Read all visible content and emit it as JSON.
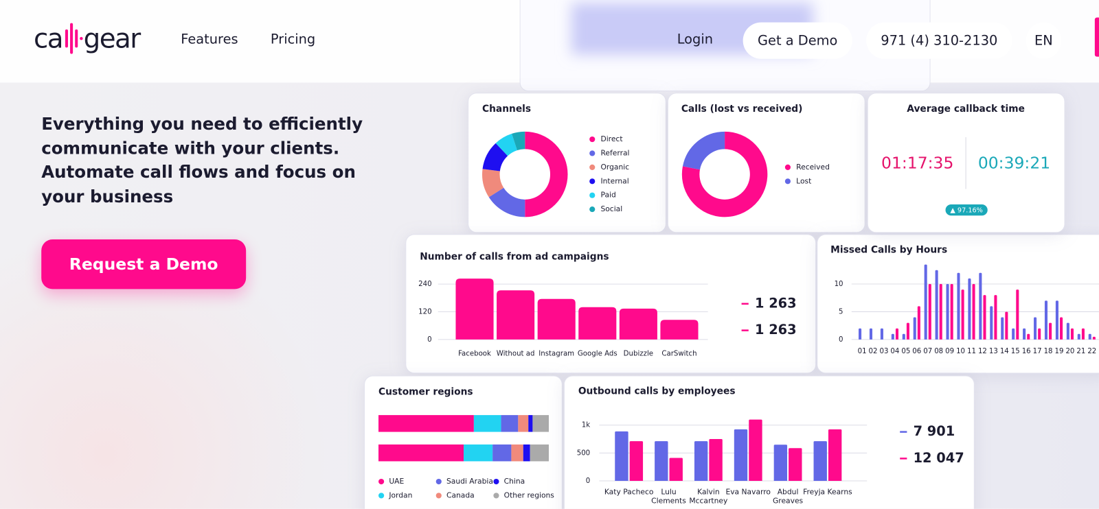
{
  "nav": {
    "logo": {
      "left": "ca",
      "right": "gear"
    },
    "links": [
      "Features",
      "Pricing"
    ],
    "login": "Login",
    "demo": "Get a Demo",
    "phone": "971 (4) 310-2130",
    "lang": "EN"
  },
  "hero": {
    "text": "Everything you need to efficiently communicate with your clients. Automate call flows and focus on your business",
    "button": "Request a Demo"
  },
  "callback": {
    "title": "Average callback time",
    "times": [
      "01:17:35",
      "00:39:21"
    ],
    "badge": "▲ 97.16%"
  },
  "chart_data": [
    {
      "type": "pie",
      "donut": true,
      "title": "Channels",
      "categories": [
        "Direct",
        "Referral",
        "Organic",
        "Internal",
        "Paid",
        "Social"
      ],
      "values": [
        50,
        16,
        11,
        11,
        7,
        5
      ],
      "colors": [
        "#ff0a8c",
        "#6268e6",
        "#f08a7c",
        "#1e0ff0",
        "#22d3f2",
        "#1aa8b8"
      ]
    },
    {
      "type": "pie",
      "donut": true,
      "title": "Calls (lost vs received)",
      "categories": [
        "Received",
        "Lost"
      ],
      "values": [
        78,
        22
      ],
      "colors": [
        "#ff0a8c",
        "#6268e6"
      ]
    },
    {
      "type": "bar",
      "title": "Number of calls from ad campaigns",
      "categories": [
        "Facebook",
        "Without ad",
        "Instagram",
        "Google Ads",
        "Dubizzle",
        "CarSwitch"
      ],
      "values": [
        264,
        213,
        176,
        140,
        134,
        85
      ],
      "color": "#ff0a8c",
      "ylim": [
        0,
        270
      ],
      "yticks": [
        0,
        120,
        240
      ],
      "grid": true,
      "total": "1 263"
    },
    {
      "type": "bar",
      "title": "Missed Calls by Hours",
      "categories": [
        "01",
        "02",
        "03",
        "04",
        "05",
        "06",
        "07",
        "08",
        "09",
        "10",
        "11",
        "12",
        "13",
        "14",
        "15",
        "16",
        "17",
        "18",
        "19",
        "20",
        "21",
        "22"
      ],
      "series": [
        {
          "color": "#6268e6",
          "values": [
            2,
            2,
            2,
            1,
            1,
            4,
            13.5,
            12.5,
            10,
            12,
            11,
            12,
            6,
            4,
            2,
            2,
            4,
            7,
            7,
            3,
            1,
            1
          ]
        },
        {
          "color": "#ff0a8c",
          "values": [
            0,
            0,
            0,
            2,
            3,
            6,
            10,
            10,
            10,
            9,
            10,
            8,
            8,
            5,
            9,
            1,
            2,
            3,
            4,
            2,
            2,
            0.5
          ]
        }
      ],
      "ylim": [
        0,
        14
      ],
      "yticks": [
        0,
        5,
        10
      ],
      "grid": true
    },
    {
      "type": "stacked_barh",
      "title": "Customer regions",
      "categories": [
        null,
        null
      ],
      "series": [
        {
          "name": "UAE",
          "color": "#ff0a8c",
          "values": [
            56,
            50
          ]
        },
        {
          "name": "Jordan",
          "color": "#22d3f2",
          "values": [
            16,
            17
          ]
        },
        {
          "name": "Saudi Arabia",
          "color": "#6268e6",
          "values": [
            10,
            11
          ]
        },
        {
          "name": "Canada",
          "color": "#f08a7c",
          "values": [
            6,
            7
          ]
        },
        {
          "name": "China",
          "color": "#1e0ff0",
          "values": [
            2.5,
            4
          ]
        },
        {
          "name": "Other regions",
          "color": "#aaaaaa",
          "values": [
            9.5,
            11
          ]
        }
      ],
      "xlim": [
        0,
        100
      ]
    },
    {
      "type": "bar",
      "title": "Outbound calls by employees",
      "categories": [
        "Katy Pacheco",
        "Lulu Clements",
        "Kalvin Mccartney",
        "Eva Navarro",
        "Abdul Greaves",
        "Freyja Kearns"
      ],
      "series": [
        {
          "color": "#6268e6",
          "values": [
            888,
            713,
            713,
            925,
            650,
            713
          ],
          "total": "7 901"
        },
        {
          "color": "#ff0a8c",
          "values": [
            713,
            413,
            750,
            1100,
            588,
            925
          ],
          "total": "12 047"
        }
      ],
      "ylim": [
        0,
        1130
      ],
      "yticks": [
        0,
        500,
        {
          "value": 1000,
          "label": "1k"
        }
      ],
      "grid": true
    }
  ]
}
